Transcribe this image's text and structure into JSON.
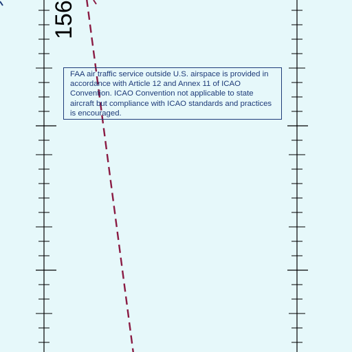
{
  "map": {
    "meridian_label": "156°",
    "notice": "FAA air traffic service outside U.S. airspace is provided in accordance with Article 12 and Annex 11 of ICAO Convention. ICAO Convention not applicable to state aircraft but compliance with ICAO standards and practices is encouraged.",
    "colors": {
      "background": "#e6f8fa",
      "boundary": "#8a1b43",
      "notice_text": "#1d3a78",
      "graticule": "#000000"
    }
  }
}
